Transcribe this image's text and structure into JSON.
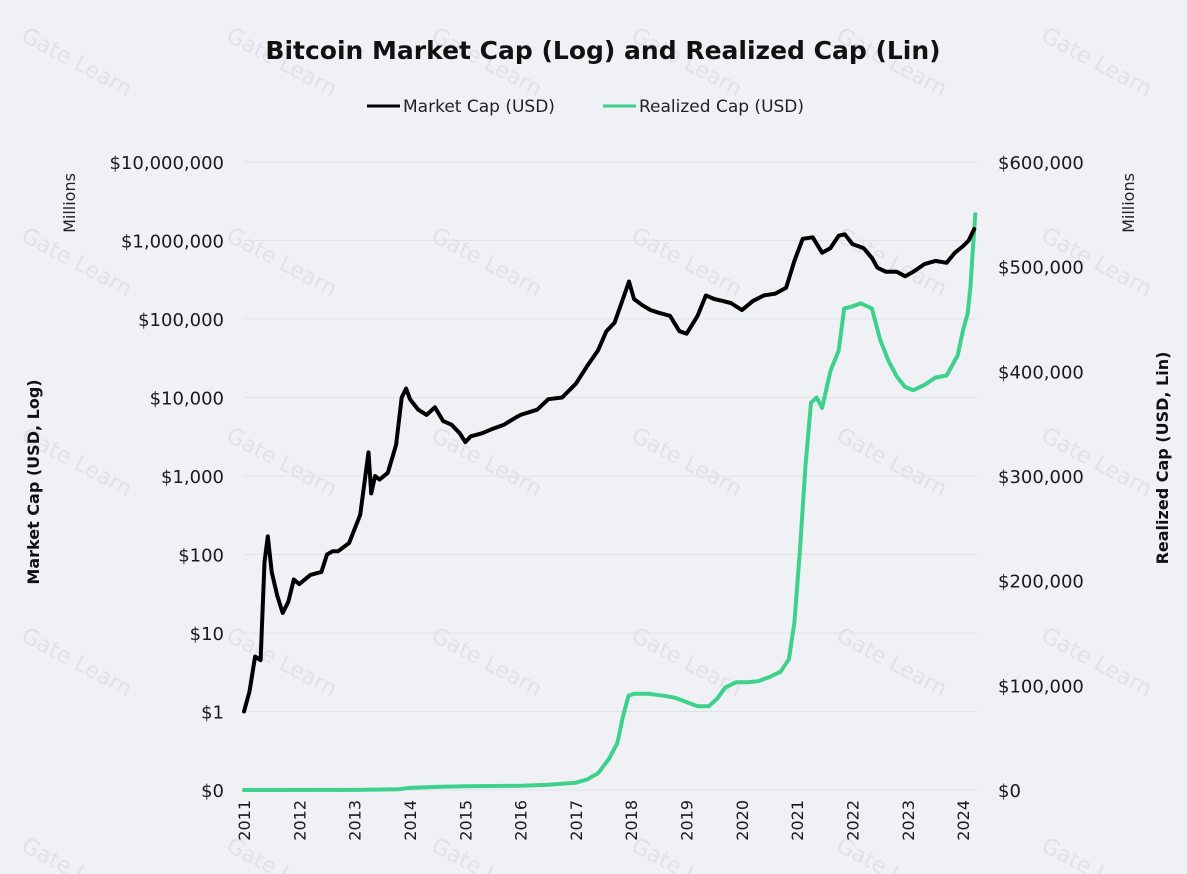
{
  "chart_data": {
    "type": "line",
    "title": "Bitcoin Market Cap (Log) and Realized Cap (Lin)",
    "watermark": "Gate Learn",
    "legend": [
      {
        "name": "Market Cap (USD)",
        "color": "#000000"
      },
      {
        "name": "Realized Cap (USD)",
        "color": "#3ed18c"
      }
    ],
    "legend_position": "top-center",
    "x_ticks": [
      "2011",
      "2012",
      "2013",
      "2014",
      "2015",
      "2016",
      "2017",
      "2018",
      "2019",
      "2020",
      "2021",
      "2022",
      "2023",
      "2024"
    ],
    "x_range": [
      2011.0,
      2024.25
    ],
    "left_axis": {
      "label": "Market Cap (USD, Log)",
      "unit": "Millions",
      "scale": "log",
      "ticks": [
        "$0",
        "$1",
        "$10",
        "$100",
        "$1,000",
        "$10,000",
        "$100,000",
        "$1,000,000",
        "$10,000,000"
      ]
    },
    "right_axis": {
      "label": "Realized Cap (USD, Lin)",
      "unit": "Millions",
      "scale": "linear",
      "ylim": [
        0,
        600000
      ],
      "ticks": [
        "$0",
        "$100,000",
        "$200,000",
        "$300,000",
        "$400,000",
        "$500,000",
        "$600,000"
      ]
    },
    "series": [
      {
        "name": "Market Cap (USD)",
        "axis": "left",
        "color": "#000000",
        "x": [
          2011.0,
          2011.1,
          2011.2,
          2011.3,
          2011.37,
          2011.43,
          2011.5,
          2011.6,
          2011.7,
          2011.8,
          2011.9,
          2012.0,
          2012.2,
          2012.4,
          2012.5,
          2012.6,
          2012.7,
          2012.9,
          2013.1,
          2013.25,
          2013.3,
          2013.37,
          2013.45,
          2013.6,
          2013.75,
          2013.85,
          2013.93,
          2014.0,
          2014.15,
          2014.3,
          2014.45,
          2014.6,
          2014.75,
          2014.9,
          2015.0,
          2015.1,
          2015.3,
          2015.5,
          2015.7,
          2015.9,
          2016.0,
          2016.3,
          2016.5,
          2016.75,
          2017.0,
          2017.2,
          2017.4,
          2017.55,
          2017.7,
          2017.85,
          2017.96,
          2018.05,
          2018.2,
          2018.35,
          2018.5,
          2018.7,
          2018.87,
          2019.0,
          2019.2,
          2019.35,
          2019.5,
          2019.65,
          2019.8,
          2020.0,
          2020.2,
          2020.4,
          2020.6,
          2020.8,
          2020.95,
          2021.1,
          2021.28,
          2021.45,
          2021.6,
          2021.75,
          2021.86,
          2022.0,
          2022.2,
          2022.35,
          2022.45,
          2022.6,
          2022.8,
          2022.95,
          2023.1,
          2023.3,
          2023.5,
          2023.7,
          2023.85,
          2024.0,
          2024.1,
          2024.2
        ],
        "y": [
          1,
          1.8,
          5,
          4.5,
          80,
          170,
          60,
          30,
          18,
          25,
          48,
          42,
          55,
          60,
          100,
          110,
          110,
          140,
          320,
          2000,
          600,
          1000,
          900,
          1100,
          2500,
          10000,
          13000,
          9500,
          7000,
          6000,
          7500,
          5000,
          4500,
          3500,
          2700,
          3200,
          3500,
          4000,
          4500,
          5500,
          6000,
          7000,
          9500,
          10000,
          15000,
          25000,
          40000,
          70000,
          90000,
          180000,
          300000,
          180000,
          150000,
          130000,
          120000,
          110000,
          70000,
          65000,
          110000,
          200000,
          180000,
          170000,
          160000,
          130000,
          170000,
          200000,
          210000,
          250000,
          550000,
          1050000,
          1100000,
          700000,
          800000,
          1150000,
          1200000,
          900000,
          800000,
          600000,
          450000,
          400000,
          400000,
          350000,
          400000,
          500000,
          550000,
          520000,
          700000,
          850000,
          1000000,
          1400000
        ]
      },
      {
        "name": "Realized Cap (USD)",
        "axis": "right",
        "color": "#3ed18c",
        "x": [
          2011.0,
          2013.0,
          2013.8,
          2014.0,
          2014.5,
          2015.0,
          2016.0,
          2016.5,
          2017.0,
          2017.2,
          2017.4,
          2017.6,
          2017.75,
          2017.85,
          2017.95,
          2018.05,
          2018.3,
          2018.6,
          2018.8,
          2019.0,
          2019.2,
          2019.4,
          2019.55,
          2019.7,
          2019.9,
          2020.1,
          2020.3,
          2020.5,
          2020.7,
          2020.85,
          2020.95,
          2021.05,
          2021.15,
          2021.25,
          2021.35,
          2021.45,
          2021.6,
          2021.75,
          2021.85,
          2022.0,
          2022.15,
          2022.35,
          2022.5,
          2022.65,
          2022.8,
          2022.95,
          2023.1,
          2023.3,
          2023.5,
          2023.7,
          2023.9,
          2024.0,
          2024.08,
          2024.13,
          2024.18,
          2024.22
        ],
        "y": [
          0,
          100,
          800,
          2000,
          3000,
          3500,
          4000,
          5000,
          7000,
          10000,
          16000,
          30000,
          45000,
          70000,
          90000,
          92000,
          92000,
          90000,
          88000,
          84000,
          80000,
          80000,
          87000,
          98000,
          103000,
          103000,
          104000,
          108000,
          113000,
          125000,
          160000,
          230000,
          310000,
          370000,
          375000,
          365000,
          400000,
          420000,
          460000,
          462000,
          465000,
          460000,
          430000,
          410000,
          395000,
          385000,
          382000,
          387000,
          394000,
          396000,
          415000,
          440000,
          455000,
          480000,
          520000,
          550000
        ]
      }
    ]
  }
}
